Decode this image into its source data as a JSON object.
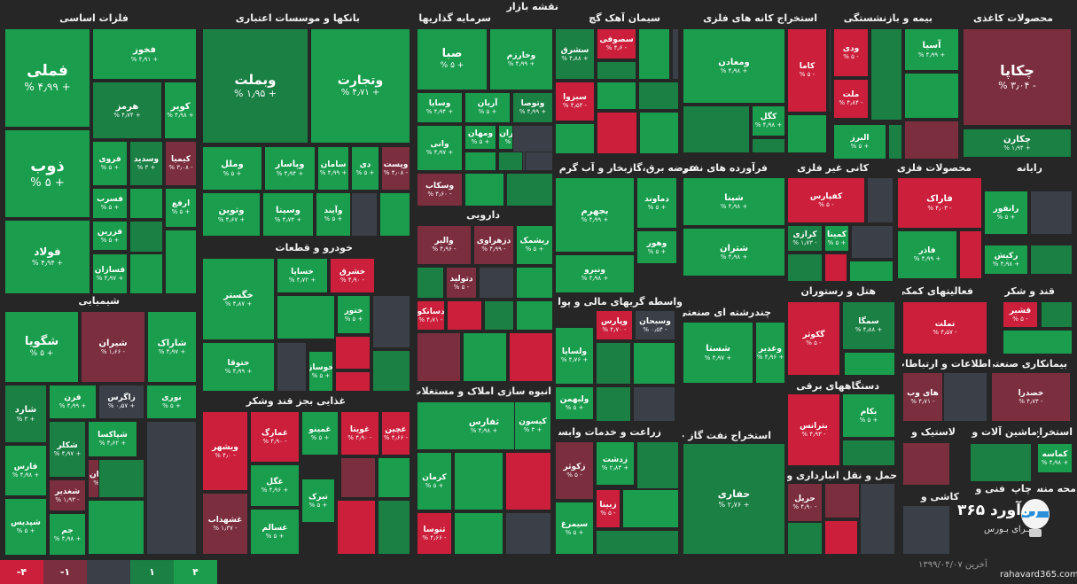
{
  "page": {
    "market_title": "نقشه بازار",
    "footer_date": "۱۳۹۹/۰۴/۰۷ آخرین",
    "footer_site": "rahavard365.com",
    "logo_text": "ره‌آورد ۳۶۵",
    "logo_sub": "بـرای بـورس"
  },
  "colors": {
    "strong_green": "#1a9e4e",
    "green": "#1a8044",
    "neutral": "#3a3f48",
    "red": "#7b2e3e",
    "strong_red": "#cc1f3b",
    "background": "#262626"
  },
  "legend": [
    "-۴",
    "-۱",
    "",
    "۱",
    "۴"
  ],
  "sections": [
    {
      "title": "فلزات اساسی"
    },
    {
      "title": "بانکها و موسسات اعتباری"
    },
    {
      "title": "سرمایه گذاریها"
    },
    {
      "title": "سیمان آهک گچ"
    },
    {
      "title": "استخراج کانه های فلزی"
    },
    {
      "title": "بیمه و بازنشستگی"
    },
    {
      "title": "محصولات کاغذی"
    },
    {
      "title": "شیمیایی"
    },
    {
      "title": "خودرو و قطعات"
    },
    {
      "title": "دارویی"
    },
    {
      "title": "عرضه برق،گازبخار و آب گرم"
    },
    {
      "title": "فرآورده های نفتی"
    },
    {
      "title": "کانی غیر فلزی"
    },
    {
      "title": "محصولات فلزی"
    },
    {
      "title": "رایانه"
    },
    {
      "title": "واسطه گریهای مالی و پولی"
    },
    {
      "title": "چندرشته ای صنعتی"
    },
    {
      "title": "هتل و رستوران"
    },
    {
      "title": "فعالیتهای کمکی به"
    },
    {
      "title": "قند و شکر"
    },
    {
      "title": "اطلاعات و ارتباطات"
    },
    {
      "title": "بیمانکاری صنعتی"
    },
    {
      "title": "انبوه سازی املاک و مستغلات"
    },
    {
      "title": "دستگاههای برقی"
    },
    {
      "title": "غذایی بجز قند وشکر"
    },
    {
      "title": "زراعت و خدمات وابسته"
    },
    {
      "title": "استخراج نفت گاز جز"
    },
    {
      "title": "لاستیک و"
    },
    {
      "title": "ماشین آلات و"
    },
    {
      "title": "استخراج"
    },
    {
      "title": "حمل و نقل انبارداری و"
    },
    {
      "title": "کاشی و"
    },
    {
      "title": "فنی و"
    },
    {
      "title": "چاپ"
    },
    {
      "title": "محه منسو"
    }
  ],
  "tiles": [
    {
      "name": "فملی",
      "pct": "% ۴٫۹۹ +"
    },
    {
      "name": "ذوب",
      "pct": "% ۵ +"
    },
    {
      "name": "فولاد",
      "pct": "% ۴٫۹۴ +"
    },
    {
      "name": "فخوز",
      "pct": "% ۴٫۹۱ +"
    },
    {
      "name": "هرمز",
      "pct": "% ۴٫۷۴ +"
    },
    {
      "name": "کویر",
      "pct": "% ۴٫۹۸ +"
    },
    {
      "name": "فروی",
      "pct": "% ۵ +"
    },
    {
      "name": "وسدید",
      "pct": "% ۳ +"
    },
    {
      "name": "کیمیا",
      "pct": "% ۳٫۰۸ -"
    },
    {
      "name": "فسرب",
      "pct": "% ۵ +"
    },
    {
      "name": "ارفع",
      "pct": "% ۵ +"
    },
    {
      "name": "فزرین",
      "pct": "% ۵ +"
    },
    {
      "name": "فسازان",
      "pct": "% ۴٫۹۷ +"
    },
    {
      "name": "وبملت",
      "pct": "% ۱٫۹۵ +"
    },
    {
      "name": "وتجارت",
      "pct": "% ۴٫۷۱ +"
    },
    {
      "name": "وملل",
      "pct": "% ۵ +"
    },
    {
      "name": "وپاسار",
      "pct": "% ۴٫۹۴ +"
    },
    {
      "name": "سامان",
      "pct": "% ۴٫۹۹ +"
    },
    {
      "name": "دی",
      "pct": "% ۵ +"
    },
    {
      "name": "وپست",
      "pct": "% ۴٫۰۸ -"
    },
    {
      "name": "وتوین",
      "pct": "% ۴٫۶۷ +"
    },
    {
      "name": "وسینا",
      "pct": "% ۴٫۷۴ +"
    },
    {
      "name": "وآیند",
      "pct": "% ۵ +"
    },
    {
      "name": "صبا",
      "pct": "% ۵ +"
    },
    {
      "name": "وخارزم",
      "pct": "% ۴٫۹۹ +"
    },
    {
      "name": "وسایا",
      "pct": "% ۴٫۹۴ +"
    },
    {
      "name": "آریان",
      "pct": "% ۵ +"
    },
    {
      "name": "وتوصا",
      "pct": "% ۴٫۹۹ +"
    },
    {
      "name": "وانی",
      "pct": "% ۴٫۹۷ +"
    },
    {
      "name": "ومهان",
      "pct": "% ۵ +"
    },
    {
      "name": "گوهران",
      "pct": "% ۵ +"
    },
    {
      "name": "وسکاب",
      "pct": "% ۴٫۶۰ -"
    },
    {
      "name": "سشرق",
      "pct": "% ۴٫۸۸ +"
    },
    {
      "name": "سصوفی",
      "pct": "% ۴٫۶ -"
    },
    {
      "name": "سبزوا",
      "pct": "% ۴٫۵۴ -"
    },
    {
      "name": "ومعادن",
      "pct": "% ۴٫۹۸ +"
    },
    {
      "name": "کاما",
      "pct": "% ۵ -"
    },
    {
      "name": "کگل",
      "pct": "% ۴٫۹۸ +"
    },
    {
      "name": "وکاغذ",
      "pct": "% ۵ +"
    },
    {
      "name": "ودی",
      "pct": "% ۵ -"
    },
    {
      "name": "آسیا",
      "pct": "% ۴٫۹۹ +"
    },
    {
      "name": "ملت",
      "pct": "% ۴٫۸۴ -"
    },
    {
      "name": "البرز",
      "pct": "% ۵ +"
    },
    {
      "name": "چکاپا",
      "pct": "% ۳٫۰۴ -"
    },
    {
      "name": "چکارن",
      "pct": "% ۱٫۹۴ +"
    },
    {
      "name": "شگویا",
      "pct": "% ۵ +"
    },
    {
      "name": "شیران",
      "pct": "% ۱٫۶۶ -"
    },
    {
      "name": "شاراک",
      "pct": "% ۴٫۹۷ +"
    },
    {
      "name": "شارد",
      "pct": "% ۳ +"
    },
    {
      "name": "قرن",
      "pct": "% ۴٫۹۹ +"
    },
    {
      "name": "زاگرس",
      "pct": "% ۰٫۵۷ +"
    },
    {
      "name": "نوری",
      "pct": "% ۵ +"
    },
    {
      "name": "شپاکسا",
      "pct": "% ۴٫۶۲ +"
    },
    {
      "name": "شکلر",
      "pct": "% ۴٫۹۷ +"
    },
    {
      "name": "زنجان",
      "pct": "% ۳ -"
    },
    {
      "name": "فارس",
      "pct": "% ۴٫۹۸ +"
    },
    {
      "name": "شغدیر",
      "pct": "% ۱٫۹۳ -"
    },
    {
      "name": "شپدیس",
      "pct": "% ۵ +"
    },
    {
      "name": "جم",
      "pct": "% ۴٫۹۸ +"
    },
    {
      "name": "خگستر",
      "pct": "% ۴٫۸۷ +"
    },
    {
      "name": "خساپا",
      "pct": "% ۴٫۷۲ +"
    },
    {
      "name": "خشرق",
      "pct": "% ۴٫۹۰ -"
    },
    {
      "name": "ختور",
      "pct": "% ۵ +"
    },
    {
      "name": "ختوقا",
      "pct": "% ۴٫۹۹ +"
    },
    {
      "name": "خوساز",
      "pct": "% ۵ +"
    },
    {
      "name": "والبر",
      "pct": "% ۴٫۹۶ -"
    },
    {
      "name": "دزهراوی",
      "pct": "% ۴٫۹۹ -"
    },
    {
      "name": "ریشمک",
      "pct": "% ۵ +"
    },
    {
      "name": "دتولید",
      "pct": "% ۵ -"
    },
    {
      "name": "دسانکو",
      "pct": "% ۴٫۷۱ -"
    },
    {
      "name": "بجهرم",
      "pct": "% ۴٫۹۹ +"
    },
    {
      "name": "دماوند",
      "pct": "% ۵ +"
    },
    {
      "name": "وهور",
      "pct": "% ۵ +"
    },
    {
      "name": "ونیرو",
      "pct": "% ۴٫۹۸ +"
    },
    {
      "name": "شپنا",
      "pct": "% ۴٫۹۸ +"
    },
    {
      "name": "شتران",
      "pct": "% ۴٫۹۸ +"
    },
    {
      "name": "کفپارس",
      "pct": "% ۵ -"
    },
    {
      "name": "کرازی",
      "pct": "% ۱٫۷۳ -"
    },
    {
      "name": "کمینا",
      "pct": "% ۵ +"
    },
    {
      "name": "فاراک",
      "pct": "% ۴٫۰۳ -"
    },
    {
      "name": "فاذر",
      "pct": "% ۴٫۹۹ +"
    },
    {
      "name": "رانفور",
      "pct": "% ۵ +"
    },
    {
      "name": "رکیش",
      "pct": "% ۴٫۹۸ +"
    },
    {
      "name": "وپارس",
      "pct": "% ۴٫۷۰ -"
    },
    {
      "name": "وسبحان",
      "pct": "% ۰٫۵۴ -"
    },
    {
      "name": "ولساپا",
      "pct": "% ۴٫۷۶ +"
    },
    {
      "name": "ولبهمن",
      "pct": "% ۵ +"
    },
    {
      "name": "شستا",
      "pct": "% ۴٫۹۷ +"
    },
    {
      "name": "وغدیر",
      "pct": "% ۴٫۹۶ +"
    },
    {
      "name": "گکوثر",
      "pct": "% ۵ -"
    },
    {
      "name": "سمگا",
      "pct": "% ۴٫۸۸ +"
    },
    {
      "name": "تملت",
      "pct": "% ۴٫۵۷ -"
    },
    {
      "name": "قشیر",
      "pct": "% ۵ -"
    },
    {
      "name": "های وب",
      "pct": "% ۴٫۷۱ -"
    },
    {
      "name": "خصدرا",
      "pct": "% ۴٫۷۴ -"
    },
    {
      "name": "ثفارس",
      "pct": "% ۴٫۹۸ +"
    },
    {
      "name": "کیسون",
      "pct": "% ۳ +"
    },
    {
      "name": "کرمان",
      "pct": "% ۵ +"
    },
    {
      "name": "ثنوسا",
      "pct": "% ۴٫۶۶ -"
    },
    {
      "name": "بترانس",
      "pct": "% ۴٫۹۳ -"
    },
    {
      "name": "بکام",
      "pct": "% ۵ +"
    },
    {
      "name": "کماسه",
      "pct": "% ۴٫۹۸ +"
    },
    {
      "name": "حفاری",
      "pct": "% ۲٫۷۶ +"
    },
    {
      "name": "ویشهر",
      "pct": "% ۴٫۰ -"
    },
    {
      "name": "غمارگ",
      "pct": "% ۴٫۹۰ -"
    },
    {
      "name": "غمینو",
      "pct": "% ۵ +"
    },
    {
      "name": "غویتا",
      "pct": "% ۴٫۹۰ -"
    },
    {
      "name": "غچین",
      "pct": "% ۴٫۶۶ -"
    },
    {
      "name": "غگل",
      "pct": "% ۴٫۹۶ +"
    },
    {
      "name": "غشهداب",
      "pct": "% ۱٫۳۷ -"
    },
    {
      "name": "غسالم",
      "pct": "% ۵ +"
    },
    {
      "name": "تبرک",
      "pct": "% ۵ +"
    },
    {
      "name": "زکوثر",
      "pct": "% ۵ -"
    },
    {
      "name": "زدشت",
      "pct": "% ۲٫۸۳ +"
    },
    {
      "name": "زبینا",
      "pct": "% ۵ -"
    },
    {
      "name": "سیمرغ",
      "pct": "% ۵ +"
    },
    {
      "name": "حریل",
      "pct": "% ۴٫۹۰ -"
    }
  ]
}
